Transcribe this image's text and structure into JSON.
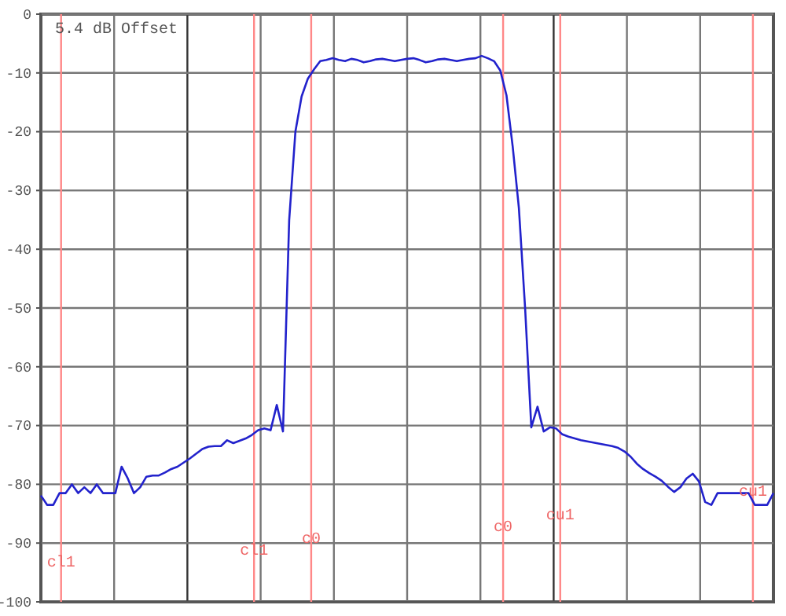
{
  "chart_data": {
    "type": "line",
    "annotations": [
      "5.4 dB Offset",
      "cl1",
      "cl1",
      "c0",
      "c0",
      "cu1",
      "cu1"
    ],
    "categories": [
      null,
      null,
      null,
      null,
      null,
      null,
      null,
      null,
      null,
      null,
      null,
      null,
      null,
      null,
      null,
      null,
      null,
      null,
      null,
      null,
      null,
      null,
      null,
      null,
      null,
      null,
      null,
      null,
      null,
      null,
      null,
      null,
      null,
      null,
      null,
      null,
      null,
      null,
      null,
      null,
      null,
      null,
      null,
      null,
      null,
      null,
      null,
      null,
      null,
      null,
      null,
      null,
      null,
      null,
      null,
      null,
      null,
      null,
      null,
      null,
      null,
      null,
      null,
      null,
      null,
      null,
      null,
      null,
      null,
      null,
      null,
      null,
      null,
      null,
      null,
      null,
      null,
      null,
      null,
      null,
      null,
      null,
      null,
      null,
      null,
      null,
      null,
      null,
      null,
      null,
      null,
      null,
      null,
      null,
      null,
      null,
      null,
      null,
      null,
      null,
      null,
      null,
      null,
      null,
      null,
      null,
      null,
      null,
      null,
      null,
      null,
      null,
      null,
      null,
      null,
      null,
      null,
      null,
      null
    ],
    "series": [
      {
        "color": "#2222cc",
        "values": [
          -81.9,
          -83.5,
          -83.5,
          -81.5,
          -81.5,
          -80,
          -81.5,
          -80.5,
          -81.5,
          -80,
          -81.5,
          -81.5,
          -81.5,
          -77,
          -79,
          -81.5,
          -80.5,
          -78.7,
          -78.5,
          -78.5,
          -78,
          -77.4,
          -77,
          -76.3,
          -75.6,
          -74.8,
          -74,
          -73.6,
          -73.5,
          -73.5,
          -72.5,
          -73,
          -72.6,
          -72.2,
          -71.6,
          -70.8,
          -70.5,
          -70.8,
          -66.5,
          -71,
          -35,
          -20,
          -14,
          -11,
          -9.4,
          -8,
          -7.8,
          -7.5,
          -7.8,
          -8,
          -7.6,
          -7.8,
          -8.2,
          -8,
          -7.7,
          -7.6,
          -7.8,
          -8,
          -7.8,
          -7.6,
          -7.5,
          -7.8,
          -8.2,
          -8,
          -7.7,
          -7.6,
          -7.8,
          -8,
          -7.8,
          -7.6,
          -7.5,
          -7.1,
          -7.5,
          -8,
          -9.6,
          -13.8,
          -22.5,
          -33,
          -50,
          -70.3,
          -66.8,
          -71,
          -70.3,
          -70.5,
          -71.5,
          -71.9,
          -72.2,
          -72.5,
          -72.7,
          -72.9,
          -73.1,
          -73.3,
          -73.5,
          -73.8,
          -74.4,
          -75.3,
          -76.5,
          -77.4,
          -78.1,
          -78.7,
          -79.4,
          -80.4,
          -81.3,
          -80.5,
          -79,
          -78.2,
          -79.5,
          -83,
          -83.5,
          -81.5,
          -81.5,
          -81.5,
          -81.5,
          -81.5,
          -81.5,
          -83.5,
          -83.5,
          -83.5,
          -81.5
        ]
      }
    ],
    "ylim": [
      -100,
      0
    ],
    "yticks": [
      -100,
      -90,
      -80,
      -70,
      -60,
      -50,
      -40,
      -30,
      -20,
      -10,
      0
    ],
    "grid": true,
    "marker": "none",
    "line_style": "solid"
  }
}
